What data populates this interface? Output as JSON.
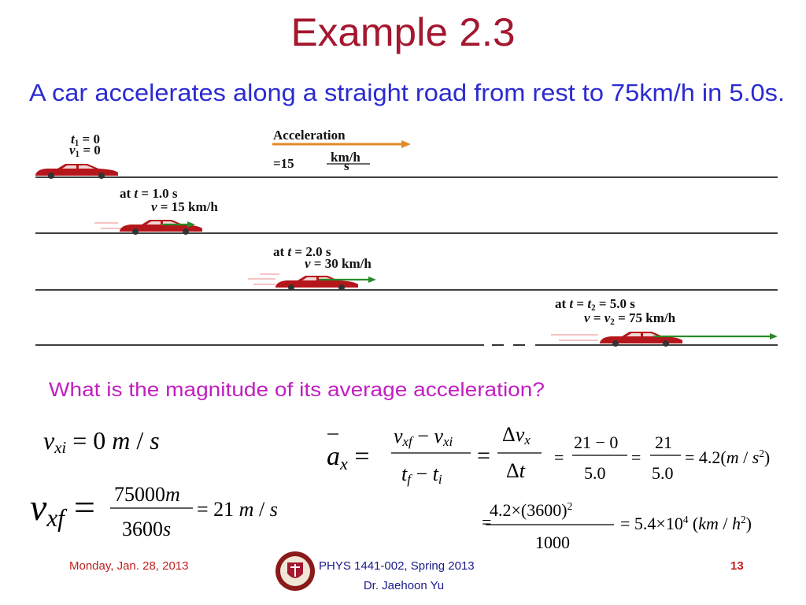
{
  "header": {
    "title": "Example 2.3",
    "subtitle": "A car accelerates along a straight road from rest to 75km/h in 5.0s."
  },
  "figure": {
    "start": {
      "t": [
        "t",
        "1",
        " = 0"
      ],
      "v": [
        "v",
        "1",
        " = 0"
      ]
    },
    "acceleration": {
      "label": "Acceleration",
      "value": "=15",
      "unit_num": "km/h",
      "unit_den": "s"
    },
    "snapshots": [
      {
        "t": [
          "at ",
          "t",
          " = 1.0 s"
        ],
        "v": [
          "v",
          " = 15 km/h"
        ]
      },
      {
        "t": [
          "at ",
          "t",
          " = 2.0 s"
        ],
        "v": [
          "v",
          " = 30 km/h"
        ]
      },
      {
        "t": [
          "at ",
          "t",
          " = ",
          "t",
          "2",
          " = 5.0 s"
        ],
        "v": [
          "v",
          " = ",
          "v",
          "2",
          " = 75 km/h"
        ]
      }
    ]
  },
  "question": "What is the magnitude of its average acceleration?",
  "equations": {
    "initial": [
      "v",
      "xi",
      " = 0 ",
      "m",
      " / ",
      "s"
    ],
    "final": {
      "lhs": [
        "v",
        "xf",
        " ="
      ],
      "numerator": [
        "75000",
        "m"
      ],
      "denominator": [
        "3600",
        "s"
      ],
      "result": [
        "= 21 ",
        "m",
        " / ",
        "s"
      ]
    },
    "average": {
      "lhs": [
        "a",
        "x",
        " ="
      ],
      "num1": [
        "v",
        "xf",
        " − ",
        "v",
        "xi"
      ],
      "den1": [
        "t",
        "f",
        " − ",
        "t",
        "i"
      ],
      "eq1": "=",
      "num2": [
        "Δ",
        "v",
        "x"
      ],
      "den2": [
        "Δ",
        "t"
      ],
      "eq2": "=",
      "num3": "21 − 0",
      "den3": "5.0",
      "eq3": "=",
      "num4": "21",
      "den4": "5.0",
      "result": [
        "= 4.2(",
        "m",
        " / ",
        "s",
        "2",
        ")"
      ]
    },
    "conversion": {
      "eq": "=",
      "numerator": [
        "4.2×(3600)",
        "2"
      ],
      "denominator": "1000",
      "result": [
        "= 5.4×10",
        "4",
        " (",
        "km",
        " / ",
        "h",
        "2",
        ")"
      ]
    }
  },
  "footer": {
    "date": "Monday, Jan. 28, 2013",
    "course": "PHYS 1441-002, Spring 2013",
    "instructor": "Dr. Jaehoon Yu",
    "page": "13"
  }
}
